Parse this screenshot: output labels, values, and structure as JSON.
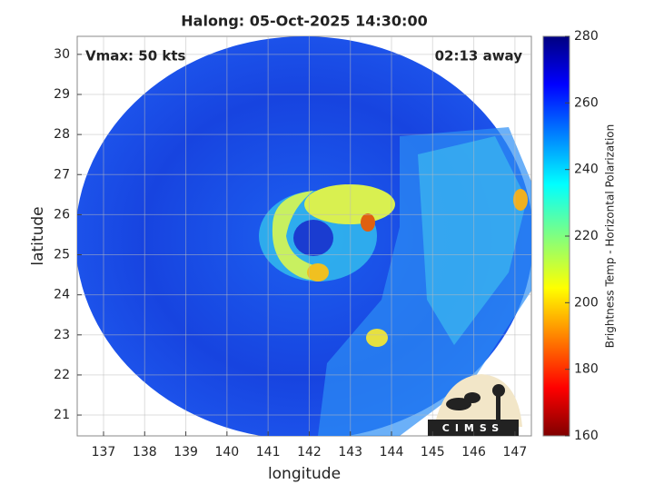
{
  "chart_data": {
    "type": "heatmap",
    "title": "Halong: 05-Oct-2025 14:30:00",
    "annotations": [
      "Vmax: 50 kts",
      "02:13 away"
    ],
    "xlabel": "longitude",
    "ylabel": "latitude",
    "xlim": [
      136.36,
      147.4
    ],
    "ylim": [
      20.48,
      30.45
    ],
    "xticks": [
      137,
      138,
      139,
      140,
      141,
      142,
      143,
      144,
      145,
      146,
      147
    ],
    "yticks": [
      21,
      22,
      23,
      24,
      25,
      26,
      27,
      28,
      29,
      30
    ],
    "grid": true,
    "colorbar": {
      "label": "Brightness Temp - Horizontal Polarization",
      "lim": [
        160,
        280
      ],
      "ticks": [
        160,
        180,
        200,
        220,
        240,
        260,
        280
      ]
    },
    "logo": "CIMSS"
  }
}
